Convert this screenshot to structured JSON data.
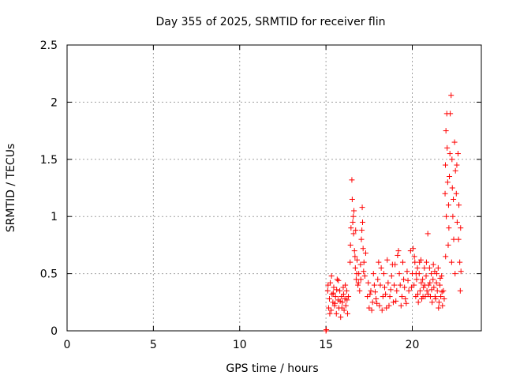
{
  "chart_data": {
    "type": "scatter",
    "title": "Day 355 of 2025, SRMTID for receiver flin",
    "xlabel": "GPS time / hours",
    "ylabel": "SRMTID / TECUs",
    "xlim": [
      0,
      24
    ],
    "ylim": [
      0,
      2.5
    ],
    "xticks": [
      0,
      5,
      10,
      15,
      20
    ],
    "yticks": [
      0,
      0.5,
      1,
      1.5,
      2,
      2.5
    ],
    "ytick_labels": [
      "0",
      "0.5",
      "1",
      "1.5",
      "2",
      "2.5"
    ],
    "grid": true,
    "marker": "+",
    "series": [
      {
        "name": "SRMTID",
        "color": "#ff0000",
        "points": [
          [
            15.0,
            0.0
          ],
          [
            15.02,
            0.01
          ],
          [
            15.1,
            0.35
          ],
          [
            15.15,
            0.2
          ],
          [
            15.2,
            0.28
          ],
          [
            15.25,
            0.42
          ],
          [
            15.3,
            0.18
          ],
          [
            15.35,
            0.32
          ],
          [
            15.4,
            0.25
          ],
          [
            15.45,
            0.38
          ],
          [
            15.5,
            0.22
          ],
          [
            15.55,
            0.3
          ],
          [
            15.6,
            0.15
          ],
          [
            15.65,
            0.45
          ],
          [
            15.7,
            0.27
          ],
          [
            15.75,
            0.2
          ],
          [
            15.8,
            0.35
          ],
          [
            15.85,
            0.12
          ],
          [
            15.9,
            0.3
          ],
          [
            15.95,
            0.25
          ],
          [
            16.0,
            0.38
          ],
          [
            16.05,
            0.18
          ],
          [
            16.1,
            0.28
          ],
          [
            16.15,
            0.22
          ],
          [
            16.2,
            0.35
          ],
          [
            16.25,
            0.15
          ],
          [
            16.3,
            0.3
          ],
          [
            15.12,
            0.4
          ],
          [
            15.22,
            0.15
          ],
          [
            15.32,
            0.48
          ],
          [
            15.42,
            0.33
          ],
          [
            15.52,
            0.24
          ],
          [
            15.62,
            0.36
          ],
          [
            15.72,
            0.44
          ],
          [
            15.82,
            0.26
          ],
          [
            15.92,
            0.2
          ],
          [
            16.02,
            0.32
          ],
          [
            16.12,
            0.4
          ],
          [
            16.22,
            0.27
          ],
          [
            16.4,
            0.6
          ],
          [
            16.45,
            0.9
          ],
          [
            16.5,
            1.32
          ],
          [
            16.52,
            1.15
          ],
          [
            16.55,
            0.95
          ],
          [
            16.6,
            0.85
          ],
          [
            16.62,
            1.05
          ],
          [
            16.65,
            0.7
          ],
          [
            16.7,
            0.55
          ],
          [
            16.72,
            0.88
          ],
          [
            16.75,
            0.45
          ],
          [
            16.8,
            0.62
          ],
          [
            16.85,
            0.4
          ],
          [
            16.9,
            0.5
          ],
          [
            16.95,
            0.35
          ],
          [
            17.0,
            0.58
          ],
          [
            17.05,
            0.8
          ],
          [
            17.1,
            1.08
          ],
          [
            17.12,
            0.95
          ],
          [
            17.15,
            0.72
          ],
          [
            17.2,
            0.6
          ],
          [
            17.25,
            0.48
          ],
          [
            17.3,
            0.68
          ],
          [
            16.42,
            0.75
          ],
          [
            16.58,
            1.0
          ],
          [
            16.68,
            0.65
          ],
          [
            16.78,
            0.5
          ],
          [
            16.88,
            0.42
          ],
          [
            17.02,
            0.45
          ],
          [
            17.08,
            0.88
          ],
          [
            17.18,
            0.52
          ],
          [
            17.4,
            0.3
          ],
          [
            17.5,
            0.2
          ],
          [
            17.6,
            0.35
          ],
          [
            17.7,
            0.25
          ],
          [
            17.8,
            0.4
          ],
          [
            17.9,
            0.28
          ],
          [
            18.0,
            0.45
          ],
          [
            18.1,
            0.22
          ],
          [
            18.2,
            0.55
          ],
          [
            18.3,
            0.3
          ],
          [
            18.4,
            0.38
          ],
          [
            18.5,
            0.2
          ],
          [
            18.6,
            0.42
          ],
          [
            18.7,
            0.3
          ],
          [
            18.8,
            0.48
          ],
          [
            18.9,
            0.25
          ],
          [
            19.0,
            0.58
          ],
          [
            19.1,
            0.35
          ],
          [
            19.2,
            0.7
          ],
          [
            19.3,
            0.4
          ],
          [
            19.4,
            0.3
          ],
          [
            19.5,
            0.45
          ],
          [
            19.6,
            0.28
          ],
          [
            19.7,
            0.52
          ],
          [
            19.8,
            0.35
          ],
          [
            17.45,
            0.42
          ],
          [
            17.55,
            0.32
          ],
          [
            17.65,
            0.18
          ],
          [
            17.75,
            0.5
          ],
          [
            17.85,
            0.34
          ],
          [
            17.95,
            0.24
          ],
          [
            18.05,
            0.6
          ],
          [
            18.15,
            0.4
          ],
          [
            18.25,
            0.18
          ],
          [
            18.35,
            0.5
          ],
          [
            18.45,
            0.32
          ],
          [
            18.55,
            0.62
          ],
          [
            18.65,
            0.22
          ],
          [
            18.75,
            0.36
          ],
          [
            18.85,
            0.58
          ],
          [
            18.95,
            0.4
          ],
          [
            19.05,
            0.26
          ],
          [
            19.15,
            0.66
          ],
          [
            19.25,
            0.5
          ],
          [
            19.35,
            0.22
          ],
          [
            19.45,
            0.6
          ],
          [
            19.55,
            0.38
          ],
          [
            19.65,
            0.24
          ],
          [
            19.75,
            0.44
          ],
          [
            19.9,
            0.7
          ],
          [
            20.0,
            0.5
          ],
          [
            20.05,
            0.72
          ],
          [
            20.1,
            0.4
          ],
          [
            20.15,
            0.6
          ],
          [
            20.2,
            0.3
          ],
          [
            20.25,
            0.45
          ],
          [
            20.3,
            0.55
          ],
          [
            20.35,
            0.25
          ],
          [
            20.4,
            0.5
          ],
          [
            20.45,
            0.35
          ],
          [
            20.5,
            0.62
          ],
          [
            20.55,
            0.28
          ],
          [
            20.6,
            0.45
          ],
          [
            20.65,
            0.38
          ],
          [
            20.7,
            0.55
          ],
          [
            20.75,
            0.3
          ],
          [
            20.8,
            0.48
          ],
          [
            20.85,
            0.35
          ],
          [
            20.9,
            0.85
          ],
          [
            20.95,
            0.4
          ],
          [
            21.0,
            0.55
          ],
          [
            21.05,
            0.3
          ],
          [
            21.1,
            0.5
          ],
          [
            21.15,
            0.25
          ],
          [
            21.2,
            0.45
          ],
          [
            21.25,
            0.38
          ],
          [
            21.3,
            0.52
          ],
          [
            21.35,
            0.28
          ],
          [
            21.4,
            0.42
          ],
          [
            21.45,
            0.35
          ],
          [
            21.5,
            0.55
          ],
          [
            21.55,
            0.25
          ],
          [
            21.6,
            0.4
          ],
          [
            21.65,
            0.3
          ],
          [
            21.7,
            0.48
          ],
          [
            21.75,
            0.22
          ],
          [
            21.8,
            0.35
          ],
          [
            21.85,
            0.28
          ],
          [
            19.95,
            0.38
          ],
          [
            20.12,
            0.65
          ],
          [
            20.22,
            0.5
          ],
          [
            20.32,
            0.32
          ],
          [
            20.42,
            0.6
          ],
          [
            20.52,
            0.42
          ],
          [
            20.62,
            0.3
          ],
          [
            20.72,
            0.4
          ],
          [
            20.82,
            0.6
          ],
          [
            20.92,
            0.32
          ],
          [
            21.02,
            0.42
          ],
          [
            21.12,
            0.36
          ],
          [
            21.22,
            0.58
          ],
          [
            21.32,
            0.3
          ],
          [
            21.42,
            0.5
          ],
          [
            21.52,
            0.2
          ],
          [
            21.62,
            0.46
          ],
          [
            21.72,
            0.34
          ],
          [
            21.9,
            1.2
          ],
          [
            21.92,
            1.45
          ],
          [
            21.95,
            1.75
          ],
          [
            22.0,
            1.9
          ],
          [
            22.02,
            1.6
          ],
          [
            22.05,
            1.3
          ],
          [
            22.1,
            1.1
          ],
          [
            22.12,
            0.9
          ],
          [
            22.15,
            1.35
          ],
          [
            22.2,
            1.9
          ],
          [
            22.25,
            2.06
          ],
          [
            22.3,
            1.5
          ],
          [
            22.32,
            1.25
          ],
          [
            22.35,
            1.0
          ],
          [
            22.4,
            0.8
          ],
          [
            22.45,
            1.65
          ],
          [
            22.5,
            1.4
          ],
          [
            22.55,
            1.2
          ],
          [
            22.6,
            0.95
          ],
          [
            22.65,
            1.55
          ],
          [
            22.7,
            1.1
          ],
          [
            22.75,
            0.6
          ],
          [
            22.8,
            0.9
          ],
          [
            21.93,
            0.65
          ],
          [
            21.97,
            1.0
          ],
          [
            22.08,
            0.75
          ],
          [
            22.18,
            1.55
          ],
          [
            22.28,
            0.6
          ],
          [
            22.38,
            1.15
          ],
          [
            22.48,
            0.5
          ],
          [
            22.58,
            1.45
          ],
          [
            22.68,
            0.8
          ],
          [
            22.78,
            0.35
          ],
          [
            22.82,
            0.52
          ]
        ]
      }
    ]
  }
}
